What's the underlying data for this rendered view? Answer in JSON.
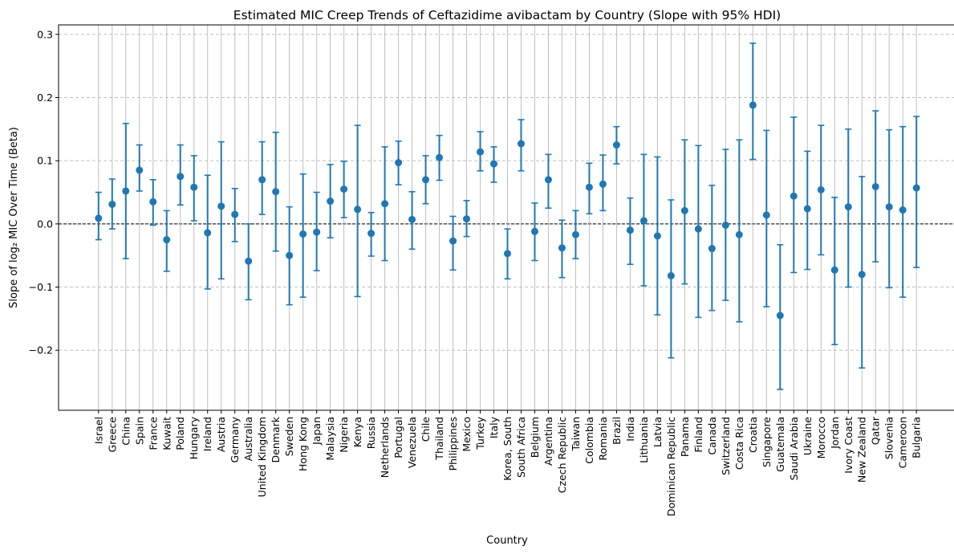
{
  "chart_data": {
    "type": "scatter",
    "title": "Estimated MIC Creep Trends of Ceftazidime avibactam by Country (Slope with 95% HDI)",
    "xlabel": "Country",
    "ylabel": "Slope of log₂ MIC Over Time (Beta)",
    "ylim": [
      -0.295,
      0.315
    ],
    "yticks": [
      -0.2,
      -0.1,
      0.0,
      0.1,
      0.2,
      0.3
    ],
    "ytick_labels": [
      "−0.2",
      "−0.1",
      "0.0",
      "0.1",
      "0.2",
      "0.3"
    ],
    "grid": true,
    "reference_line_y": 0.0,
    "color": "#1f77b4",
    "categories": [
      "Israel",
      "Greece",
      "China",
      "Spain",
      "France",
      "Kuwait",
      "Poland",
      "Hungary",
      "Ireland",
      "Austria",
      "Germany",
      "Australia",
      "United Kingdom",
      "Denmark",
      "Sweden",
      "Hong Kong",
      "Japan",
      "Malaysia",
      "Nigeria",
      "Kenya",
      "Russia",
      "Netherlands",
      "Portugal",
      "Venezuela",
      "Chile",
      "Thailand",
      "Philippines",
      "Mexico",
      "Turkey",
      "Italy",
      "Korea, South",
      "South Africa",
      "Belgium",
      "Argentina",
      "Czech Republic",
      "Taiwan",
      "Colombia",
      "Romania",
      "Brazil",
      "India",
      "Lithuania",
      "Latvia",
      "Dominican Republic",
      "Panama",
      "Finland",
      "Canada",
      "Switzerland",
      "Costa Rica",
      "Croatia",
      "Singapore",
      "Guatemala",
      "Saudi Arabia",
      "Ukraine",
      "Morocco",
      "Jordan",
      "Ivory Coast",
      "New Zealand",
      "Qatar",
      "Slovenia",
      "Cameroon",
      "Bulgaria"
    ],
    "slope": [
      0.009,
      0.031,
      0.052,
      0.085,
      0.035,
      -0.025,
      0.075,
      0.058,
      -0.014,
      0.028,
      0.015,
      -0.059,
      0.07,
      0.051,
      -0.05,
      -0.016,
      -0.013,
      0.036,
      0.055,
      0.023,
      -0.015,
      0.032,
      0.097,
      0.007,
      0.07,
      0.105,
      -0.027,
      0.008,
      0.114,
      0.095,
      -0.047,
      0.127,
      -0.012,
      0.07,
      -0.038,
      -0.017,
      0.058,
      0.063,
      0.125,
      -0.01,
      0.005,
      -0.019,
      -0.082,
      0.021,
      -0.008,
      -0.039,
      -0.002,
      -0.017,
      0.188,
      0.014,
      -0.145,
      0.044,
      0.024,
      0.054,
      -0.073,
      0.027,
      -0.08,
      0.059,
      0.027,
      0.022,
      0.057
    ],
    "hdi_low": [
      -0.025,
      -0.008,
      -0.055,
      0.052,
      -0.002,
      -0.075,
      0.03,
      0.005,
      -0.103,
      -0.087,
      -0.028,
      -0.12,
      0.015,
      -0.043,
      -0.128,
      -0.116,
      -0.074,
      -0.022,
      0.01,
      -0.115,
      -0.051,
      -0.058,
      0.062,
      -0.04,
      0.032,
      0.069,
      -0.073,
      -0.02,
      0.084,
      0.066,
      -0.087,
      0.084,
      -0.058,
      0.025,
      -0.085,
      -0.055,
      0.016,
      0.021,
      0.095,
      -0.064,
      -0.098,
      -0.144,
      -0.212,
      -0.095,
      -0.148,
      -0.137,
      -0.121,
      -0.155,
      0.102,
      -0.131,
      -0.262,
      -0.077,
      -0.072,
      -0.049,
      -0.191,
      -0.1,
      -0.228,
      -0.06,
      -0.101,
      -0.116,
      -0.069
    ],
    "hdi_high": [
      0.05,
      0.071,
      0.159,
      0.125,
      0.07,
      0.021,
      0.125,
      0.108,
      0.077,
      0.13,
      0.056,
      0.0,
      0.13,
      0.145,
      0.027,
      0.079,
      0.05,
      0.094,
      0.099,
      0.156,
      0.018,
      0.122,
      0.131,
      0.051,
      0.108,
      0.14,
      0.012,
      0.037,
      0.146,
      0.122,
      -0.008,
      0.165,
      0.033,
      0.11,
      0.006,
      0.021,
      0.096,
      0.109,
      0.154,
      0.041,
      0.11,
      0.106,
      0.038,
      0.133,
      0.124,
      0.061,
      0.118,
      0.133,
      0.286,
      0.148,
      -0.033,
      0.169,
      0.115,
      0.156,
      0.042,
      0.15,
      0.075,
      0.179,
      0.149,
      0.154,
      0.17
    ]
  }
}
